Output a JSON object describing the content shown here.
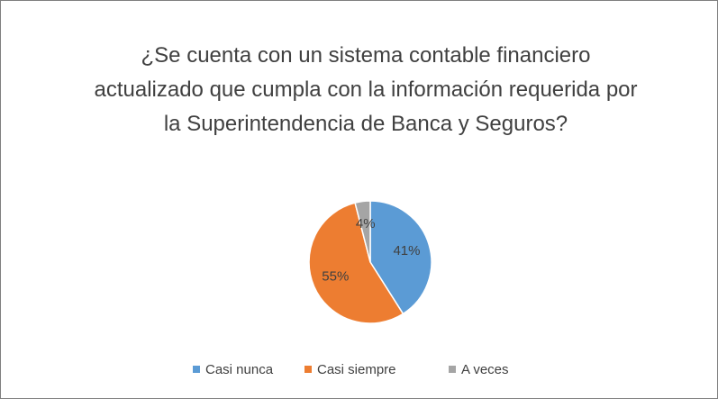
{
  "chart_data": {
    "type": "pie",
    "title": "¿Se cuenta con un sistema contable financiero actualizado que cumpla con la información requerida por la Superintendencia de Banca y Seguros?",
    "categories": [
      "Casi nunca",
      "Casi siempre",
      "A veces"
    ],
    "values": [
      41,
      55,
      4
    ],
    "value_labels": [
      "41%",
      "55%",
      "4%"
    ],
    "colors": [
      "#5b9bd5",
      "#ed7d31",
      "#a5a5a5"
    ],
    "legend": "bottom"
  }
}
